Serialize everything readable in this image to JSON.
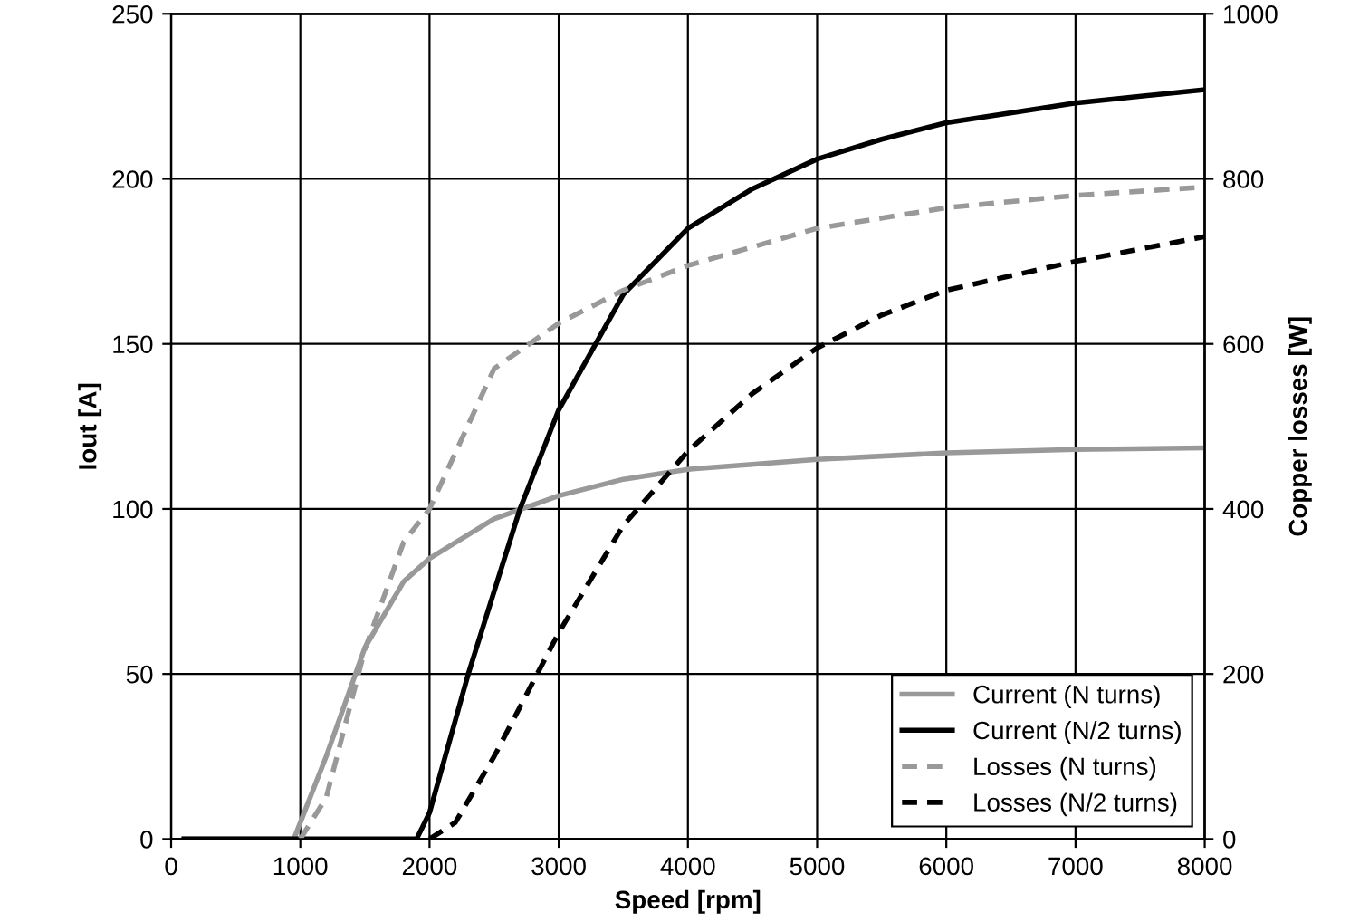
{
  "chart_data": {
    "type": "line",
    "xlabel": "Speed [rpm]",
    "ylabel": "Iout [A]",
    "y2label": "Copper losses [W]",
    "xlim": [
      0,
      8000
    ],
    "xticks": [
      0,
      1000,
      2000,
      3000,
      4000,
      5000,
      6000,
      7000,
      8000
    ],
    "ylim": [
      0,
      250
    ],
    "yticks": [
      0,
      50,
      100,
      150,
      200,
      250
    ],
    "y2lim": [
      0,
      1000
    ],
    "y2ticks": [
      0,
      200,
      400,
      600,
      800,
      1000
    ],
    "grid": true,
    "legend": "bottom right",
    "marker": "none",
    "series": [
      {
        "name": "Current (N turns)",
        "color": "#999999",
        "line_style": "solid",
        "x": [
          100,
          950,
          1200,
          1500,
          1800,
          2000,
          2500,
          3000,
          3500,
          4000,
          5000,
          6000,
          7000,
          8000
        ],
        "values": [
          0,
          0,
          25,
          58,
          78,
          85,
          97,
          104,
          109,
          112,
          115,
          117,
          118,
          118.5
        ]
      },
      {
        "name": "Current (N/2 turns)",
        "color": "#000000",
        "line_style": "solid",
        "x": [
          100,
          1900,
          2000,
          2300,
          2700,
          3000,
          3500,
          4000,
          4500,
          5000,
          5500,
          6000,
          7000,
          8000
        ],
        "values": [
          0,
          0,
          8,
          50,
          100,
          130,
          165,
          185,
          197,
          206,
          212,
          217,
          223,
          227
        ]
      },
      {
        "name": "Losses (N turns)",
        "color": "#999999",
        "line_style": "dashed",
        "axis": "y2",
        "x": [
          1000,
          1200,
          1500,
          1800,
          2000,
          2500,
          3000,
          3500,
          4000,
          5000,
          6000,
          7000,
          8000
        ],
        "values": [
          0,
          50,
          230,
          360,
          400,
          570,
          625,
          665,
          695,
          740,
          765,
          780,
          790
        ]
      },
      {
        "name": "Losses (N/2 turns)",
        "color": "#000000",
        "line_style": "dashed",
        "axis": "y2",
        "x": [
          2000,
          2200,
          2500,
          3000,
          3500,
          4000,
          4500,
          5000,
          5500,
          6000,
          7000,
          8000
        ],
        "values": [
          0,
          20,
          100,
          250,
          380,
          470,
          540,
          595,
          635,
          665,
          700,
          730
        ]
      }
    ]
  }
}
